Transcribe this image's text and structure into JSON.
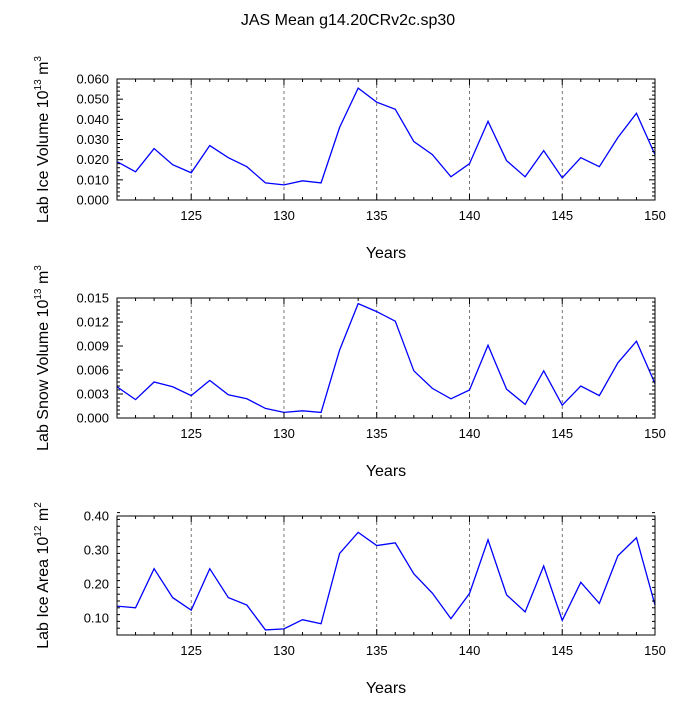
{
  "title": "JAS Mean g14.20CRv2c.sp30",
  "colors": {
    "line": "#0000ff",
    "axis": "#000000",
    "grid": "#555555"
  },
  "chart_data": [
    {
      "type": "line",
      "title": "JAS Mean g14.20CRv2c.sp30",
      "xlabel": "Years",
      "ylabel_main": "Lab Ice Volume 10",
      "ylabel_exp": "13",
      "ylabel_unit": " m",
      "ylabel_unit_exp": "3",
      "xlim": [
        121,
        150
      ],
      "ylim": [
        0,
        0.06
      ],
      "xticks": [
        "125",
        "130",
        "135",
        "140",
        "145",
        "150"
      ],
      "xtick_values": [
        125,
        130,
        135,
        140,
        145,
        150
      ],
      "yticks": [
        "0.000",
        "0.010",
        "0.020",
        "0.030",
        "0.040",
        "0.050",
        "0.060"
      ],
      "ytick_values": [
        0,
        0.01,
        0.02,
        0.03,
        0.04,
        0.05,
        0.06
      ],
      "yminor_step": 0.002,
      "grid": "dashed vertical at major x ticks",
      "x": [
        121,
        122,
        123,
        124,
        125,
        126,
        127,
        128,
        129,
        130,
        131,
        132,
        133,
        134,
        135,
        136,
        137,
        138,
        139,
        140,
        141,
        142,
        143,
        144,
        145,
        146,
        147,
        148,
        149,
        150
      ],
      "series": [
        {
          "name": "Lab Ice Volume",
          "values": [
            0.019,
            0.014,
            0.0255,
            0.0175,
            0.0135,
            0.027,
            0.021,
            0.0165,
            0.0085,
            0.0075,
            0.0095,
            0.0085,
            0.036,
            0.0555,
            0.0485,
            0.045,
            0.029,
            0.0225,
            0.0115,
            0.018,
            0.039,
            0.0195,
            0.0115,
            0.0245,
            0.011,
            0.021,
            0.0165,
            0.031,
            0.043,
            0.0225
          ]
        }
      ]
    },
    {
      "type": "line",
      "xlabel": "Years",
      "ylabel_main": "Lab Snow Volume 10",
      "ylabel_exp": "13",
      "ylabel_unit": " m",
      "ylabel_unit_exp": "3",
      "xlim": [
        121,
        150
      ],
      "ylim": [
        0,
        0.015
      ],
      "xticks": [
        "125",
        "130",
        "135",
        "140",
        "145",
        "150"
      ],
      "xtick_values": [
        125,
        130,
        135,
        140,
        145,
        150
      ],
      "yticks": [
        "0.000",
        "0.003",
        "0.006",
        "0.009",
        "0.012",
        "0.015"
      ],
      "ytick_values": [
        0,
        0.003,
        0.006,
        0.009,
        0.012,
        0.015
      ],
      "yminor_step": 0.0005,
      "grid": "dashed vertical at major x ticks",
      "x": [
        121,
        122,
        123,
        124,
        125,
        126,
        127,
        128,
        129,
        130,
        131,
        132,
        133,
        134,
        135,
        136,
        137,
        138,
        139,
        140,
        141,
        142,
        143,
        144,
        145,
        146,
        147,
        148,
        149,
        150
      ],
      "series": [
        {
          "name": "Lab Snow Volume",
          "values": [
            0.0039,
            0.0023,
            0.0045,
            0.0039,
            0.0028,
            0.0047,
            0.0029,
            0.0024,
            0.0012,
            0.0007,
            0.0009,
            0.0007,
            0.0085,
            0.0143,
            0.0133,
            0.0121,
            0.0059,
            0.0037,
            0.0024,
            0.0035,
            0.0091,
            0.0036,
            0.0017,
            0.0059,
            0.0016,
            0.004,
            0.0028,
            0.0069,
            0.0096,
            0.0043
          ]
        }
      ]
    },
    {
      "type": "line",
      "xlabel": "Years",
      "ylabel_main": "Lab Ice Area 10",
      "ylabel_exp": "12",
      "ylabel_unit": " m",
      "ylabel_unit_exp": "2",
      "xlim": [
        121,
        150
      ],
      "ylim": [
        0.05,
        0.4
      ],
      "xticks": [
        "125",
        "130",
        "135",
        "140",
        "145",
        "150"
      ],
      "xtick_values": [
        125,
        130,
        135,
        140,
        145,
        150
      ],
      "yticks": [
        "0.10",
        "0.20",
        "0.30",
        "0.40"
      ],
      "ytick_values": [
        0.1,
        0.2,
        0.3,
        0.4
      ],
      "yminor_step": 0.02,
      "grid": "dashed vertical at major x ticks",
      "x": [
        121,
        122,
        123,
        124,
        125,
        126,
        127,
        128,
        129,
        130,
        131,
        132,
        133,
        134,
        135,
        136,
        137,
        138,
        139,
        140,
        141,
        142,
        143,
        144,
        145,
        146,
        147,
        148,
        149,
        150
      ],
      "series": [
        {
          "name": "Lab Ice Area",
          "values": [
            0.135,
            0.13,
            0.245,
            0.16,
            0.123,
            0.245,
            0.16,
            0.138,
            0.065,
            0.068,
            0.095,
            0.083,
            0.29,
            0.352,
            0.313,
            0.321,
            0.23,
            0.173,
            0.098,
            0.172,
            0.33,
            0.168,
            0.118,
            0.253,
            0.093,
            0.205,
            0.143,
            0.283,
            0.336,
            0.138
          ]
        }
      ]
    }
  ]
}
